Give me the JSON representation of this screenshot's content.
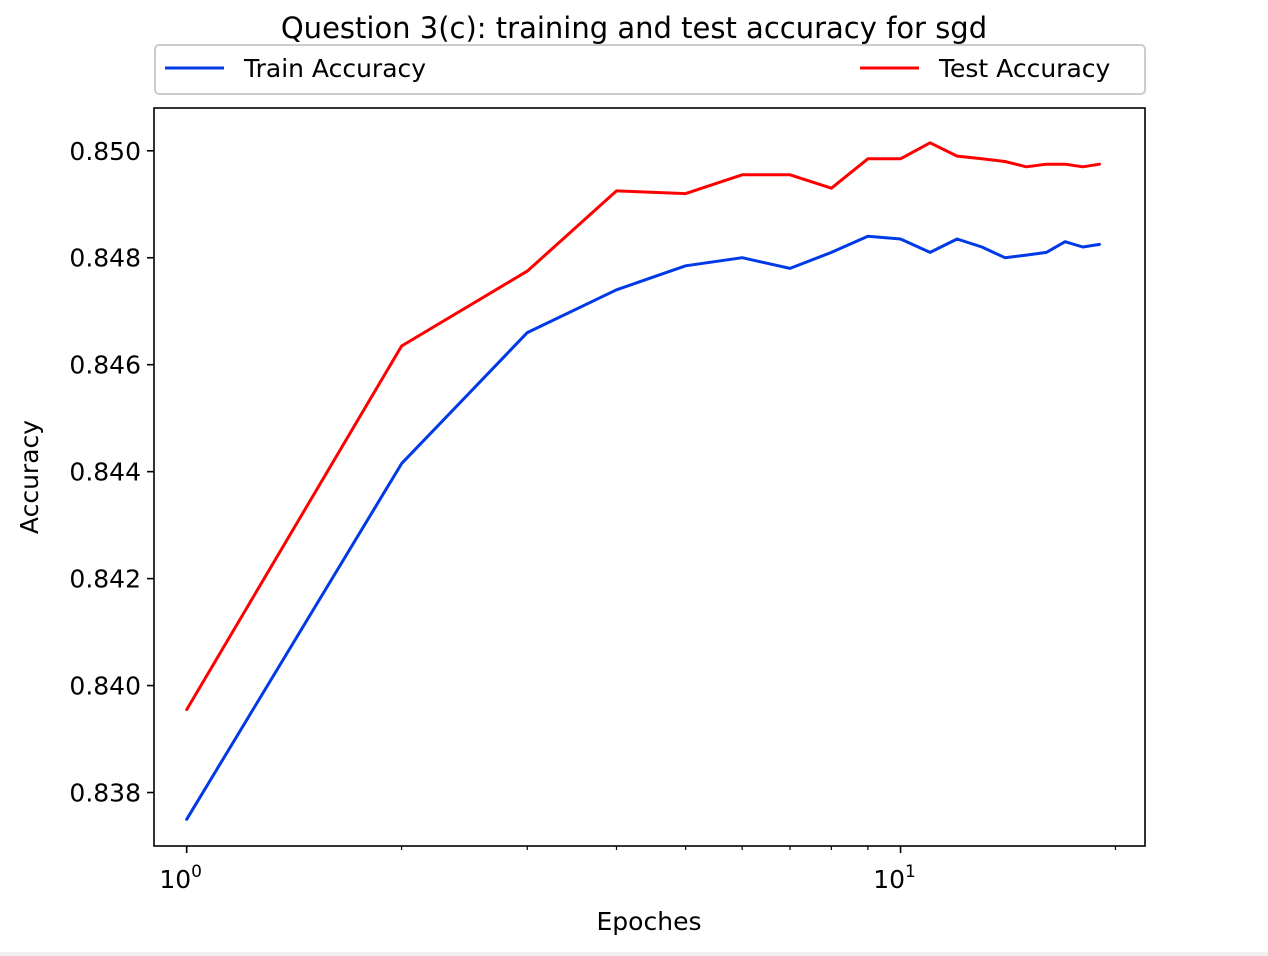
{
  "chart_data": {
    "type": "line",
    "title": "Question 3(c): training and test accuracy for sgd",
    "xlabel": "Epoches",
    "ylabel": "Accuracy",
    "xscale": "log",
    "xlim": [
      0.9,
      22
    ],
    "ylim": [
      0.837,
      0.8508
    ],
    "yticks": [
      0.838,
      0.84,
      0.842,
      0.844,
      0.846,
      0.848,
      0.85
    ],
    "ytick_labels": [
      "0.838",
      "0.840",
      "0.842",
      "0.844",
      "0.846",
      "0.848",
      "0.850"
    ],
    "xticks_major": [
      1,
      10
    ],
    "xtick_labels": [
      {
        "base": "10",
        "exp": "0"
      },
      {
        "base": "10",
        "exp": "1"
      }
    ],
    "xticks_minor": [
      2,
      3,
      4,
      5,
      6,
      7,
      8,
      9,
      20
    ],
    "legend_placement": "top, above plot",
    "grid": false,
    "x": [
      1,
      2,
      3,
      4,
      5,
      6,
      7,
      8,
      9,
      10,
      11,
      12,
      13,
      14,
      15,
      16,
      17,
      18,
      19
    ],
    "series": [
      {
        "name": "Train Accuracy",
        "color": "#0039e6",
        "values": [
          0.8375,
          0.84415,
          0.8466,
          0.8474,
          0.84785,
          0.848,
          0.8478,
          0.8481,
          0.8484,
          0.84835,
          0.8481,
          0.84835,
          0.8482,
          0.848,
          0.84805,
          0.8481,
          0.8483,
          0.8482,
          0.84825
        ]
      },
      {
        "name": "Test Accuracy",
        "color": "#ff0000",
        "values": [
          0.83955,
          0.84635,
          0.84775,
          0.84925,
          0.8492,
          0.84955,
          0.84955,
          0.8493,
          0.84985,
          0.84985,
          0.85015,
          0.8499,
          0.84985,
          0.8498,
          0.8497,
          0.84975,
          0.84975,
          0.8497,
          0.84975
        ]
      }
    ]
  }
}
